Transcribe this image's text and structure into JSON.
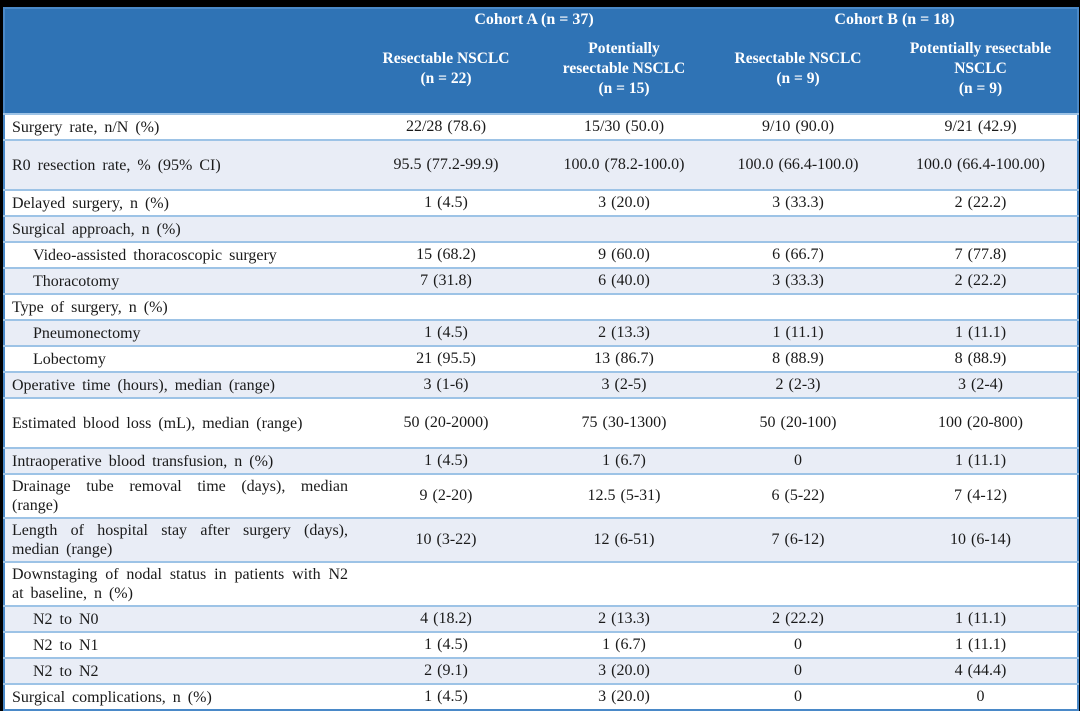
{
  "header": {
    "cohort_a": "Cohort A (n = 37)",
    "cohort_b": "Cohort B (n = 18)",
    "columns": [
      {
        "lines": [
          "Resectable NSCLC"
        ],
        "n": "(n = 22)"
      },
      {
        "lines": [
          "Potentially",
          "resectable NSCLC"
        ],
        "n": "(n = 15)"
      },
      {
        "lines": [
          "Resectable NSCLC"
        ],
        "n": "(n = 9)"
      },
      {
        "lines": [
          "Potentially resectable",
          "NSCLC"
        ],
        "n": "(n = 9)"
      }
    ]
  },
  "rows": [
    {
      "label": "Surgery rate, n/N (%)",
      "indent": false,
      "tall": false,
      "values": [
        "22/28 (78.6)",
        "15/30 (50.0)",
        "9/10 (90.0)",
        "9/21 (42.9)"
      ]
    },
    {
      "label": "R0 resection rate, % (95% CI)",
      "indent": false,
      "tall": true,
      "values": [
        "95.5 (77.2-99.9)",
        "100.0 (78.2-100.0)",
        "100.0 (66.4-100.0)",
        "100.0 (66.4-100.00)"
      ]
    },
    {
      "label": "Delayed surgery, n (%)",
      "indent": false,
      "tall": false,
      "values": [
        "1 (4.5)",
        "3 (20.0)",
        "3 (33.3)",
        "2 (22.2)"
      ]
    },
    {
      "label": "Surgical approach, n (%)",
      "indent": false,
      "tall": false,
      "values": [
        "",
        "",
        "",
        ""
      ]
    },
    {
      "label": "Video-assisted thoracoscopic surgery",
      "indent": true,
      "tall": false,
      "values": [
        "15 (68.2)",
        "9 (60.0)",
        "6 (66.7)",
        "7 (77.8)"
      ]
    },
    {
      "label": "Thoracotomy",
      "indent": true,
      "tall": false,
      "values": [
        "7 (31.8)",
        "6 (40.0)",
        "3 (33.3)",
        "2 (22.2)"
      ]
    },
    {
      "label": "Type of surgery, n (%)",
      "indent": false,
      "tall": false,
      "values": [
        "",
        "",
        "",
        ""
      ]
    },
    {
      "label": "Pneumonectomy",
      "indent": true,
      "tall": false,
      "values": [
        "1 (4.5)",
        "2 (13.3)",
        "1 (11.1)",
        "1 (11.1)"
      ]
    },
    {
      "label": "Lobectomy",
      "indent": true,
      "tall": false,
      "values": [
        "21 (95.5)",
        "13 (86.7)",
        "8 (88.9)",
        "8 (88.9)"
      ]
    },
    {
      "label": "Operative time (hours), median (range)",
      "indent": false,
      "tall": false,
      "values": [
        "3 (1-6)",
        "3 (2-5)",
        "2 (2-3)",
        "3 (2-4)"
      ]
    },
    {
      "label": "Estimated blood loss (mL), median (range)",
      "indent": false,
      "tall": true,
      "values": [
        "50 (20-2000)",
        "75 (30-1300)",
        "50 (20-100)",
        "100 (20-800)"
      ]
    },
    {
      "label": "Intraoperative blood transfusion, n (%)",
      "indent": false,
      "tall": false,
      "values": [
        "1 (4.5)",
        "1 (6.7)",
        "0",
        "1 (11.1)"
      ]
    },
    {
      "label": "Drainage tube removal time (days), median (range)",
      "indent": false,
      "tall": false,
      "values": [
        "9 (2-20)",
        "12.5 (5-31)",
        "6 (5-22)",
        "7 (4-12)"
      ]
    },
    {
      "label": "Length of hospital stay after surgery (days), median (range)",
      "indent": false,
      "tall": false,
      "values": [
        "10 (3-22)",
        "12 (6-51)",
        "7 (6-12)",
        "10 (6-14)"
      ]
    },
    {
      "label": "Downstaging of nodal status in patients with N2 at baseline, n (%)",
      "indent": false,
      "tall": false,
      "values": [
        "",
        "",
        "",
        ""
      ]
    },
    {
      "label": "N2 to N0",
      "indent": true,
      "tall": false,
      "values": [
        "4 (18.2)",
        "2 (13.3)",
        "2 (22.2)",
        "1 (11.1)"
      ]
    },
    {
      "label": "N2 to N1",
      "indent": true,
      "tall": false,
      "values": [
        "1 (4.5)",
        "1 (6.7)",
        "0",
        "1 (11.1)"
      ]
    },
    {
      "label": "N2 to N2",
      "indent": true,
      "tall": false,
      "values": [
        "2 (9.1)",
        "3 (20.0)",
        "0",
        "4 (44.4)"
      ]
    },
    {
      "label": "Surgical complications, n (%)",
      "indent": false,
      "tall": false,
      "values": [
        "1 (4.5)",
        "3 (20.0)",
        "0",
        "0"
      ]
    }
  ],
  "colors": {
    "header_bg": "#2f73b5",
    "header_text": "#ffffff",
    "stripe_bg": "#e9edf6",
    "row_border": "#9dc3e6",
    "outer_border": "#4a89c8",
    "frame_bg": "#000000",
    "body_text": "#1a1a1a"
  }
}
